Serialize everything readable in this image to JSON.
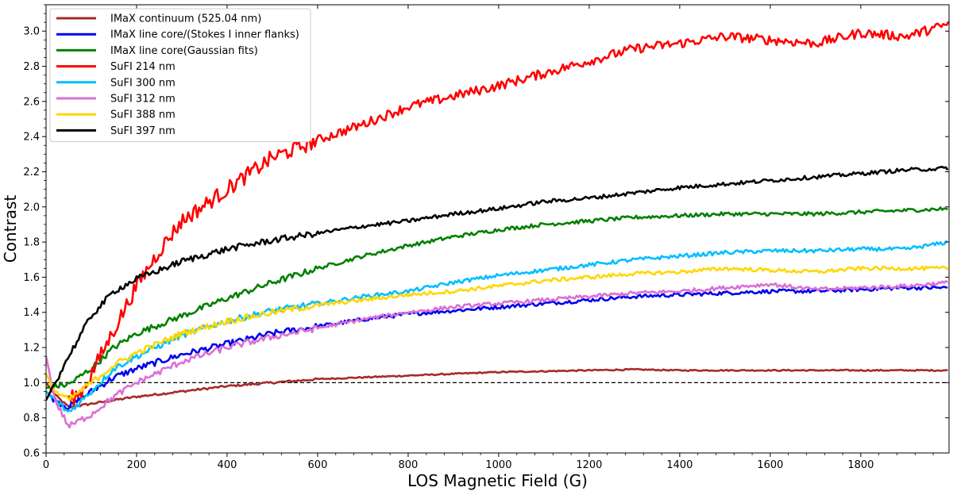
{
  "chart_data": {
    "type": "line",
    "title": "",
    "xlabel": "LOS Magnetic Field (G)",
    "ylabel": "Contrast",
    "xlim": [
      0,
      1995
    ],
    "ylim": [
      0.6,
      3.15
    ],
    "xticks": [
      0,
      200,
      400,
      600,
      800,
      1000,
      1200,
      1400,
      1600,
      1800
    ],
    "yticks": [
      0.6,
      0.8,
      1.0,
      1.2,
      1.4,
      1.6,
      1.8,
      2.0,
      2.2,
      2.4,
      2.6,
      2.8,
      3.0
    ],
    "grid": false,
    "legend_position": "top-left",
    "reference_line": {
      "y": 1.0,
      "style": "dashed",
      "color": "#000000"
    },
    "series": [
      {
        "name": "IMaX continuum (525.04 nm)",
        "color": "#A52A2A",
        "points": [
          [
            0,
            1.0
          ],
          [
            20,
            0.93
          ],
          [
            50,
            0.86
          ],
          [
            100,
            0.88
          ],
          [
            150,
            0.9
          ],
          [
            200,
            0.92
          ],
          [
            300,
            0.95
          ],
          [
            400,
            0.98
          ],
          [
            500,
            1.0
          ],
          [
            600,
            1.02
          ],
          [
            700,
            1.03
          ],
          [
            800,
            1.04
          ],
          [
            900,
            1.05
          ],
          [
            1000,
            1.06
          ],
          [
            1100,
            1.065
          ],
          [
            1200,
            1.07
          ],
          [
            1300,
            1.075
          ],
          [
            1400,
            1.07
          ],
          [
            1500,
            1.07
          ],
          [
            1600,
            1.07
          ],
          [
            1700,
            1.07
          ],
          [
            1800,
            1.07
          ],
          [
            1900,
            1.07
          ],
          [
            1995,
            1.07
          ]
        ]
      },
      {
        "name": "IMaX line core/(Stokes I inner flanks)",
        "color": "#0000EE",
        "points": [
          [
            0,
            0.95
          ],
          [
            20,
            0.9
          ],
          [
            50,
            0.86
          ],
          [
            100,
            0.95
          ],
          [
            150,
            1.03
          ],
          [
            200,
            1.08
          ],
          [
            300,
            1.16
          ],
          [
            400,
            1.22
          ],
          [
            500,
            1.28
          ],
          [
            600,
            1.32
          ],
          [
            700,
            1.36
          ],
          [
            800,
            1.39
          ],
          [
            900,
            1.41
          ],
          [
            1000,
            1.43
          ],
          [
            1100,
            1.45
          ],
          [
            1200,
            1.47
          ],
          [
            1300,
            1.49
          ],
          [
            1400,
            1.5
          ],
          [
            1500,
            1.51
          ],
          [
            1600,
            1.52
          ],
          [
            1700,
            1.52
          ],
          [
            1800,
            1.53
          ],
          [
            1900,
            1.54
          ],
          [
            1995,
            1.54
          ]
        ]
      },
      {
        "name": "IMaX line core(Gaussian fits)",
        "color": "#008000",
        "points": [
          [
            0,
            0.97
          ],
          [
            20,
            0.98
          ],
          [
            50,
            0.99
          ],
          [
            100,
            1.08
          ],
          [
            150,
            1.2
          ],
          [
            200,
            1.28
          ],
          [
            300,
            1.38
          ],
          [
            400,
            1.48
          ],
          [
            500,
            1.57
          ],
          [
            600,
            1.65
          ],
          [
            700,
            1.72
          ],
          [
            800,
            1.78
          ],
          [
            900,
            1.83
          ],
          [
            1000,
            1.87
          ],
          [
            1100,
            1.9
          ],
          [
            1200,
            1.92
          ],
          [
            1300,
            1.94
          ],
          [
            1400,
            1.95
          ],
          [
            1500,
            1.96
          ],
          [
            1600,
            1.96
          ],
          [
            1700,
            1.96
          ],
          [
            1800,
            1.97
          ],
          [
            1900,
            1.98
          ],
          [
            1995,
            1.99
          ]
        ]
      },
      {
        "name": "SuFI 214 nm",
        "color": "#FF0000",
        "points": [
          [
            50,
            0.9
          ],
          [
            80,
            0.95
          ],
          [
            100,
            1.05
          ],
          [
            150,
            1.3
          ],
          [
            200,
            1.55
          ],
          [
            250,
            1.75
          ],
          [
            300,
            1.92
          ],
          [
            400,
            2.1
          ],
          [
            500,
            2.28
          ],
          [
            600,
            2.38
          ],
          [
            700,
            2.47
          ],
          [
            800,
            2.57
          ],
          [
            900,
            2.63
          ],
          [
            1000,
            2.69
          ],
          [
            1100,
            2.76
          ],
          [
            1200,
            2.83
          ],
          [
            1300,
            2.9
          ],
          [
            1400,
            2.93
          ],
          [
            1500,
            2.97
          ],
          [
            1600,
            2.95
          ],
          [
            1700,
            2.93
          ],
          [
            1800,
            2.99
          ],
          [
            1900,
            2.97
          ],
          [
            1995,
            3.04
          ]
        ]
      },
      {
        "name": "SuFI 300 nm",
        "color": "#00BFFF",
        "points": [
          [
            0,
            0.95
          ],
          [
            20,
            0.9
          ],
          [
            50,
            0.83
          ],
          [
            100,
            0.95
          ],
          [
            150,
            1.08
          ],
          [
            200,
            1.15
          ],
          [
            300,
            1.27
          ],
          [
            400,
            1.35
          ],
          [
            500,
            1.41
          ],
          [
            600,
            1.45
          ],
          [
            700,
            1.49
          ],
          [
            800,
            1.52
          ],
          [
            900,
            1.57
          ],
          [
            1000,
            1.61
          ],
          [
            1100,
            1.64
          ],
          [
            1200,
            1.67
          ],
          [
            1300,
            1.7
          ],
          [
            1400,
            1.72
          ],
          [
            1500,
            1.74
          ],
          [
            1600,
            1.75
          ],
          [
            1700,
            1.75
          ],
          [
            1800,
            1.76
          ],
          [
            1900,
            1.76
          ],
          [
            1995,
            1.8
          ]
        ]
      },
      {
        "name": "SuFI 312 nm",
        "color": "#DA70D6",
        "points": [
          [
            0,
            1.15
          ],
          [
            20,
            0.9
          ],
          [
            50,
            0.75
          ],
          [
            100,
            0.82
          ],
          [
            150,
            0.92
          ],
          [
            200,
            1.0
          ],
          [
            300,
            1.12
          ],
          [
            400,
            1.2
          ],
          [
            500,
            1.26
          ],
          [
            600,
            1.31
          ],
          [
            700,
            1.36
          ],
          [
            800,
            1.4
          ],
          [
            900,
            1.43
          ],
          [
            1000,
            1.45
          ],
          [
            1100,
            1.47
          ],
          [
            1200,
            1.49
          ],
          [
            1300,
            1.51
          ],
          [
            1400,
            1.52
          ],
          [
            1500,
            1.54
          ],
          [
            1600,
            1.56
          ],
          [
            1700,
            1.53
          ],
          [
            1800,
            1.54
          ],
          [
            1900,
            1.55
          ],
          [
            1995,
            1.57
          ]
        ]
      },
      {
        "name": "SuFI 388 nm",
        "color": "#FFD700",
        "points": [
          [
            0,
            1.05
          ],
          [
            20,
            0.95
          ],
          [
            50,
            0.9
          ],
          [
            100,
            1.0
          ],
          [
            150,
            1.1
          ],
          [
            200,
            1.17
          ],
          [
            300,
            1.28
          ],
          [
            400,
            1.35
          ],
          [
            500,
            1.4
          ],
          [
            600,
            1.44
          ],
          [
            700,
            1.47
          ],
          [
            800,
            1.5
          ],
          [
            900,
            1.52
          ],
          [
            1000,
            1.55
          ],
          [
            1100,
            1.58
          ],
          [
            1200,
            1.6
          ],
          [
            1300,
            1.62
          ],
          [
            1400,
            1.63
          ],
          [
            1500,
            1.65
          ],
          [
            1600,
            1.64
          ],
          [
            1700,
            1.63
          ],
          [
            1800,
            1.65
          ],
          [
            1900,
            1.65
          ],
          [
            1995,
            1.65
          ]
        ]
      },
      {
        "name": "SuFI 397 nm",
        "color": "#000000",
        "points": [
          [
            0,
            0.9
          ],
          [
            20,
            1.0
          ],
          [
            50,
            1.15
          ],
          [
            100,
            1.38
          ],
          [
            150,
            1.52
          ],
          [
            200,
            1.59
          ],
          [
            250,
            1.64
          ],
          [
            300,
            1.69
          ],
          [
            400,
            1.76
          ],
          [
            500,
            1.81
          ],
          [
            600,
            1.85
          ],
          [
            700,
            1.89
          ],
          [
            800,
            1.92
          ],
          [
            900,
            1.96
          ],
          [
            1000,
            1.99
          ],
          [
            1100,
            2.03
          ],
          [
            1200,
            2.05
          ],
          [
            1300,
            2.08
          ],
          [
            1400,
            2.11
          ],
          [
            1500,
            2.13
          ],
          [
            1600,
            2.15
          ],
          [
            1700,
            2.17
          ],
          [
            1800,
            2.19
          ],
          [
            1900,
            2.21
          ],
          [
            1995,
            2.22
          ]
        ]
      }
    ]
  }
}
